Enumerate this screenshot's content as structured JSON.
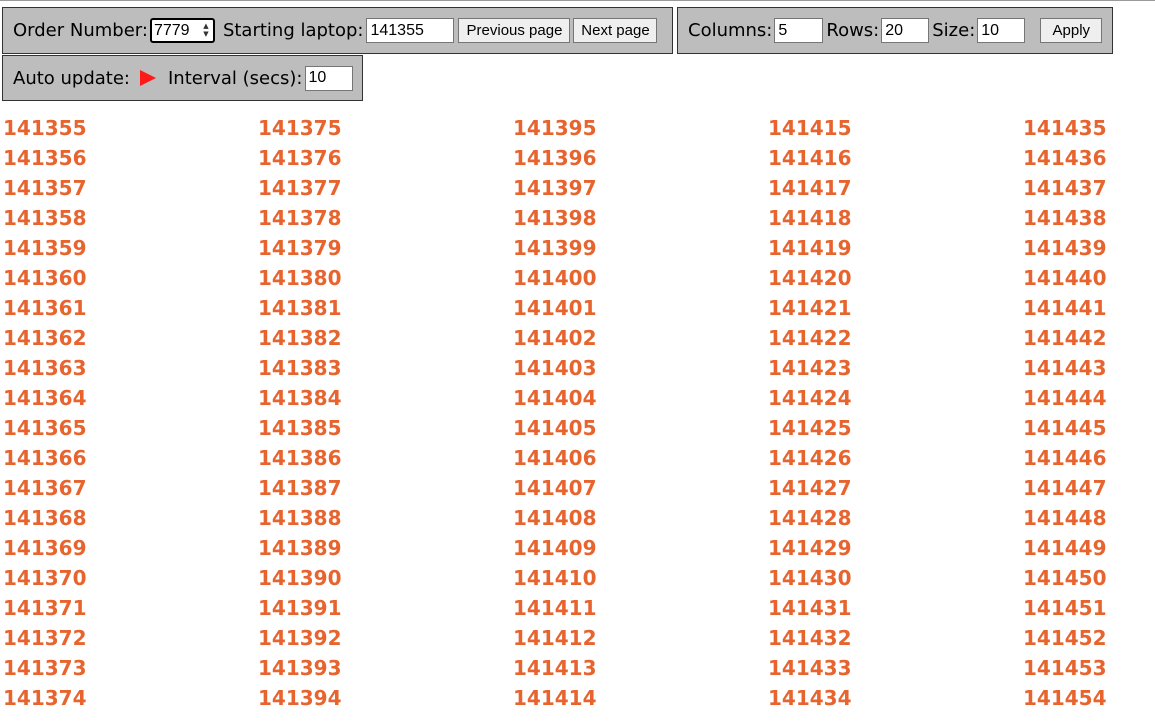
{
  "order_panel": {
    "order_label": "Order Number:",
    "order_value": "7779",
    "start_label": "Starting laptop:",
    "start_value": "141355",
    "prev_label": "Previous page",
    "next_label": "Next page"
  },
  "grid_panel": {
    "columns_label": "Columns:",
    "columns_value": "5",
    "rows_label": "Rows:",
    "rows_value": "20",
    "size_label": "Size:",
    "size_value": "10",
    "apply_label": "Apply"
  },
  "auto_panel": {
    "auto_label": "Auto update:",
    "play_icon": "play-icon",
    "interval_label": "Interval (secs):",
    "interval_value": "10"
  },
  "colors": {
    "laptop_number": "#e8642f",
    "panel_bg": "#bdbdbd",
    "play_icon": "#ff1a1a"
  },
  "laptop_grid": {
    "columns": [
      [
        "141355",
        "141356",
        "141357",
        "141358",
        "141359",
        "141360",
        "141361",
        "141362",
        "141363",
        "141364",
        "141365",
        "141366",
        "141367",
        "141368",
        "141369",
        "141370",
        "141371",
        "141372",
        "141373",
        "141374"
      ],
      [
        "141375",
        "141376",
        "141377",
        "141378",
        "141379",
        "141380",
        "141381",
        "141382",
        "141383",
        "141384",
        "141385",
        "141386",
        "141387",
        "141388",
        "141389",
        "141390",
        "141391",
        "141392",
        "141393",
        "141394"
      ],
      [
        "141395",
        "141396",
        "141397",
        "141398",
        "141399",
        "141400",
        "141401",
        "141402",
        "141403",
        "141404",
        "141405",
        "141406",
        "141407",
        "141408",
        "141409",
        "141410",
        "141411",
        "141412",
        "141413",
        "141414"
      ],
      [
        "141415",
        "141416",
        "141417",
        "141418",
        "141419",
        "141420",
        "141421",
        "141422",
        "141423",
        "141424",
        "141425",
        "141426",
        "141427",
        "141428",
        "141429",
        "141430",
        "141431",
        "141432",
        "141433",
        "141434"
      ],
      [
        "141435",
        "141436",
        "141437",
        "141438",
        "141439",
        "141440",
        "141441",
        "141442",
        "141443",
        "141444",
        "141445",
        "141446",
        "141447",
        "141448",
        "141449",
        "141450",
        "141451",
        "141452",
        "141453",
        "141454"
      ]
    ]
  }
}
